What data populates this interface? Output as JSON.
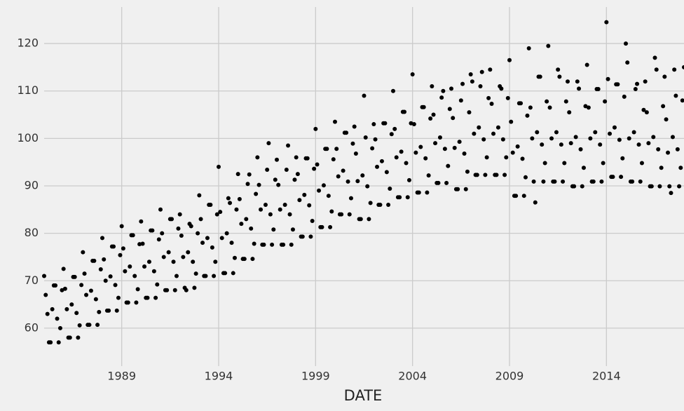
{
  "chart_data": {
    "type": "scatter",
    "x_label": "DATE",
    "x": [
      1985.0,
      1985.08,
      1985.17,
      1985.25,
      1985.33,
      1985.42,
      1985.5,
      1985.58,
      1985.67,
      1985.75,
      1985.83,
      1985.92,
      1986.0,
      1986.08,
      1986.17,
      1986.25,
      1986.33,
      1986.42,
      1986.5,
      1986.58,
      1986.67,
      1986.75,
      1986.83,
      1986.92,
      1987.0,
      1987.08,
      1987.17,
      1987.25,
      1987.33,
      1987.42,
      1987.5,
      1987.58,
      1987.67,
      1987.75,
      1987.83,
      1987.92,
      1988.0,
      1988.08,
      1988.17,
      1988.25,
      1988.33,
      1988.42,
      1988.5,
      1988.58,
      1988.67,
      1988.75,
      1988.83,
      1988.92,
      1989.0,
      1989.08,
      1989.17,
      1989.25,
      1989.33,
      1989.42,
      1989.5,
      1989.58,
      1989.67,
      1989.75,
      1989.83,
      1989.92,
      1990.0,
      1990.08,
      1990.17,
      1990.25,
      1990.33,
      1990.42,
      1990.5,
      1990.58,
      1990.67,
      1990.75,
      1990.83,
      1990.92,
      1991.0,
      1991.08,
      1991.17,
      1991.25,
      1991.33,
      1991.42,
      1991.5,
      1991.58,
      1991.67,
      1991.75,
      1991.83,
      1991.92,
      1992.0,
      1992.08,
      1992.17,
      1992.25,
      1992.33,
      1992.42,
      1992.5,
      1992.58,
      1992.67,
      1992.75,
      1992.83,
      1992.92,
      1993.0,
      1993.08,
      1993.17,
      1993.25,
      1993.33,
      1993.42,
      1993.5,
      1993.58,
      1993.67,
      1993.75,
      1993.83,
      1993.92,
      1994.0,
      1994.08,
      1994.17,
      1994.25,
      1994.33,
      1994.42,
      1994.5,
      1994.58,
      1994.67,
      1994.75,
      1994.83,
      1994.92,
      1995.0,
      1995.08,
      1995.17,
      1995.25,
      1995.33,
      1995.42,
      1995.5,
      1995.58,
      1995.67,
      1995.75,
      1995.83,
      1995.92,
      1996.0,
      1996.08,
      1996.17,
      1996.25,
      1996.33,
      1996.42,
      1996.5,
      1996.58,
      1996.67,
      1996.75,
      1996.83,
      1996.92,
      1997.0,
      1997.08,
      1997.17,
      1997.25,
      1997.33,
      1997.42,
      1997.5,
      1997.58,
      1997.67,
      1997.75,
      1997.83,
      1997.92,
      1998.0,
      1998.08,
      1998.17,
      1998.25,
      1998.33,
      1998.42,
      1998.5,
      1998.58,
      1998.67,
      1998.75,
      1998.83,
      1998.92,
      1999.0,
      1999.08,
      1999.17,
      1999.25,
      1999.33,
      1999.42,
      1999.5,
      1999.58,
      1999.67,
      1999.75,
      1999.83,
      1999.92,
      2000.0,
      2000.08,
      2000.17,
      2000.25,
      2000.33,
      2000.42,
      2000.5,
      2000.58,
      2000.67,
      2000.75,
      2000.83,
      2000.92,
      2001.0,
      2001.08,
      2001.17,
      2001.25,
      2001.33,
      2001.42,
      2001.5,
      2001.58,
      2001.67,
      2001.75,
      2001.83,
      2001.92,
      2002.0,
      2002.08,
      2002.17,
      2002.25,
      2002.33,
      2002.42,
      2002.5,
      2002.58,
      2002.67,
      2002.75,
      2002.83,
      2002.92,
      2003.0,
      2003.08,
      2003.17,
      2003.25,
      2003.33,
      2003.42,
      2003.5,
      2003.58,
      2003.67,
      2003.75,
      2003.83,
      2003.92,
      2004.0,
      2004.08,
      2004.17,
      2004.25,
      2004.33,
      2004.42,
      2004.5,
      2004.58,
      2004.67,
      2004.75,
      2004.83,
      2004.92,
      2005.0,
      2005.08,
      2005.17,
      2005.25,
      2005.33,
      2005.42,
      2005.5,
      2005.58,
      2005.67,
      2005.75,
      2005.83,
      2005.92,
      2006.0,
      2006.08,
      2006.17,
      2006.25,
      2006.33,
      2006.42,
      2006.5,
      2006.58,
      2006.67,
      2006.75,
      2006.83,
      2006.92,
      2007.0,
      2007.08,
      2007.17,
      2007.25,
      2007.33,
      2007.42,
      2007.5,
      2007.58,
      2007.67,
      2007.75,
      2007.83,
      2007.92,
      2008.0,
      2008.08,
      2008.17,
      2008.25,
      2008.33,
      2008.42,
      2008.5,
      2008.58,
      2008.67,
      2008.75,
      2008.83,
      2008.92,
      2009.0,
      2009.08,
      2009.17,
      2009.25,
      2009.33,
      2009.42,
      2009.5,
      2009.58,
      2009.67,
      2009.75,
      2009.83,
      2009.92,
      2010.0,
      2010.08,
      2010.17,
      2010.25,
      2010.33,
      2010.42,
      2010.5,
      2010.58,
      2010.67,
      2010.75,
      2010.83,
      2010.92,
      2011.0,
      2011.08,
      2011.17,
      2011.25,
      2011.33,
      2011.42,
      2011.5,
      2011.58,
      2011.67,
      2011.75,
      2011.83,
      2011.92,
      2012.0,
      2012.08,
      2012.17,
      2012.25,
      2012.33,
      2012.42,
      2012.5,
      2012.58,
      2012.67,
      2012.75,
      2012.83,
      2012.92,
      2013.0,
      2013.08,
      2013.17,
      2013.25,
      2013.33,
      2013.42,
      2013.5,
      2013.58,
      2013.67,
      2013.75,
      2013.83,
      2013.92,
      2014.0,
      2014.08,
      2014.17,
      2014.25,
      2014.33,
      2014.42,
      2014.5,
      2014.58,
      2014.67,
      2014.75,
      2014.83,
      2014.92,
      2015.0,
      2015.08,
      2015.17,
      2015.25,
      2015.33,
      2015.42,
      2015.5,
      2015.58,
      2015.67,
      2015.75,
      2015.83,
      2015.92,
      2016.0,
      2016.08,
      2016.17,
      2016.25,
      2016.33,
      2016.42,
      2016.5,
      2016.58,
      2016.67,
      2016.75,
      2016.83,
      2016.92,
      2017.0,
      2017.08,
      2017.17,
      2017.25,
      2017.33,
      2017.42,
      2017.5,
      2017.58,
      2017.67,
      2017.75,
      2017.83,
      2017.92,
      2018.0
    ],
    "values": [
      71,
      67,
      63,
      57,
      57,
      64,
      69,
      69,
      62,
      57,
      60,
      68,
      72.5,
      68.3,
      64,
      58,
      58,
      65,
      70.8,
      70.8,
      63.2,
      58,
      60.6,
      69.1,
      76,
      71.5,
      67,
      60.7,
      60.7,
      67.9,
      74.2,
      74.2,
      66.1,
      60.7,
      63.4,
      72.4,
      79,
      74.5,
      70,
      63.7,
      63.7,
      70.9,
      77.2,
      77.2,
      69.1,
      63.7,
      66.4,
      75.4,
      81.5,
      76.8,
      72,
      65.4,
      65.4,
      73,
      79.6,
      79.6,
      71,
      65.4,
      68.2,
      77.7,
      82.5,
      77.8,
      73,
      66.4,
      66.4,
      74,
      80.6,
      80.6,
      72,
      66.4,
      69.2,
      78.7,
      85,
      80,
      75,
      68,
      68,
      76,
      83,
      83,
      74,
      68,
      71,
      81,
      84,
      79.5,
      75,
      68.5,
      68,
      76,
      82,
      81.5,
      74,
      68.5,
      71.5,
      80,
      88,
      83,
      78,
      71,
      71,
      79,
      86,
      86,
      77,
      71,
      74,
      84,
      94,
      84.5,
      79,
      71.6,
      71.6,
      80,
      87.4,
      86.4,
      78,
      71.6,
      74.8,
      85,
      92.5,
      87.2,
      82,
      74.6,
      74.6,
      83,
      90.4,
      92.4,
      81,
      74.6,
      77.8,
      88.3,
      96,
      90.2,
      85,
      77.6,
      77.6,
      86,
      93.4,
      99,
      84,
      77.6,
      80.8,
      91.3,
      95.5,
      90.2,
      85,
      77.6,
      77.6,
      86,
      93.4,
      98.5,
      84,
      77.6,
      80.8,
      91.3,
      96,
      92.5,
      87,
      79.3,
      79.3,
      88.1,
      95.8,
      95.8,
      85.9,
      79.3,
      82.6,
      93.6,
      102,
      94.5,
      89,
      81.3,
      81.3,
      90.1,
      97.8,
      97.8,
      87.9,
      81.3,
      84.6,
      95.6,
      103.5,
      97.8,
      92,
      84,
      84,
      93.2,
      101.2,
      101.2,
      90.9,
      84,
      87.4,
      98.9,
      102.5,
      96.8,
      91,
      83,
      83,
      92.2,
      109,
      100.2,
      89.9,
      83,
      86.4,
      97.9,
      103,
      99.8,
      94,
      86,
      86,
      95.2,
      103.2,
      103.2,
      92.9,
      86,
      89.4,
      100.9,
      110,
      102,
      96,
      87.6,
      87.6,
      97.2,
      105.6,
      105.6,
      94.8,
      87.6,
      91.2,
      103.2,
      113.5,
      103,
      97,
      88.6,
      88.6,
      98.2,
      106.6,
      106.6,
      95.8,
      88.6,
      92.2,
      104.2,
      111,
      105,
      99,
      90.6,
      90.6,
      100.2,
      108.6,
      110,
      97.8,
      90.6,
      94.2,
      106.2,
      110.5,
      104.3,
      98,
      89.3,
      89.3,
      99.3,
      108,
      111.5,
      96.8,
      89.3,
      93,
      105.5,
      113.5,
      112,
      101,
      92.3,
      92.3,
      102.3,
      111,
      114,
      99.8,
      92.3,
      96,
      108.5,
      114.5,
      107.3,
      101,
      92.3,
      92.3,
      102.3,
      111,
      110.5,
      99.8,
      92.3,
      96,
      108.5,
      116.5,
      103.5,
      97,
      87.9,
      87.9,
      98.3,
      107.4,
      107.4,
      95.7,
      87.9,
      91.8,
      104.8,
      119,
      106.5,
      100,
      90.9,
      86.5,
      101.3,
      113,
      113,
      98.7,
      90.9,
      94.8,
      107.8,
      119.5,
      106.5,
      100,
      90.9,
      90.9,
      101.3,
      114.5,
      113,
      98.7,
      90.9,
      94.8,
      107.8,
      112,
      105.5,
      99,
      89.9,
      89.9,
      100.3,
      112,
      110.5,
      97.7,
      89.9,
      93.8,
      106.8,
      115.5,
      106.5,
      100,
      90.9,
      90.9,
      101.3,
      110.4,
      110.4,
      98.7,
      90.9,
      94.8,
      107.8,
      124.5,
      112.5,
      101,
      91.9,
      91.9,
      102.3,
      111.4,
      111.4,
      99.7,
      91.9,
      95.8,
      108.8,
      120,
      116,
      100,
      90.9,
      90.9,
      101.3,
      110.4,
      111.5,
      98.7,
      90.9,
      94.8,
      106,
      112,
      105.5,
      99,
      89.9,
      89.9,
      100.3,
      117,
      114.5,
      97.7,
      89.9,
      93.8,
      106.8,
      113,
      104,
      97,
      89.9,
      88.5,
      100.3,
      114.5,
      109,
      97.7,
      89.9,
      93.8,
      108,
      115
    ],
    "color": "#000000",
    "xlim": [
      1985,
      2018
    ],
    "xticks": [
      1989,
      1994,
      1999,
      2004,
      2009,
      2014
    ],
    "ylim": [
      52,
      127.7
    ],
    "yticks": [
      60,
      70,
      80,
      90,
      100,
      110,
      120
    ],
    "grid": true
  }
}
